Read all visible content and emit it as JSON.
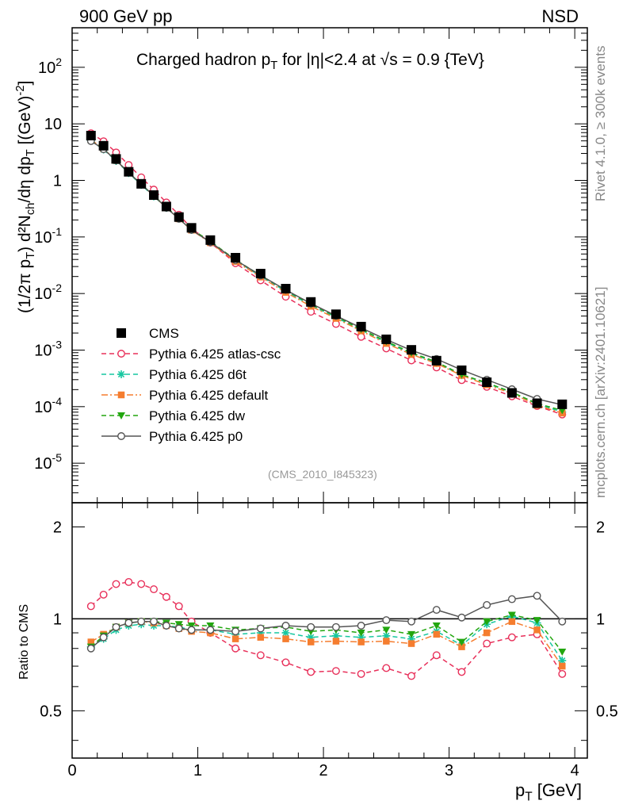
{
  "header": {
    "left": "900 GeV pp",
    "right": "NSD"
  },
  "side_labels": {
    "rivet": "Rivet 4.1.0, ≥ 300k events",
    "mcplots": "mcplots.cern.ch [arXiv:2401.10621]"
  },
  "chart_data": [
    {
      "type": "scatter",
      "title": "Charged hadron p_T for |η|<2.4 at √s = 0.9 {TeV}",
      "ylabel": "(1/2π p_T) d²N_ch/dη dp_T [(GeV)^-2]",
      "xlabel": "p_T [GeV]",
      "yscale": "log",
      "xlim": [
        0,
        4.1
      ],
      "ylim": [
        2e-06,
        500
      ],
      "analysis_tag": "(CMS_2010_I845323)",
      "y_tick_labels": [
        "10^-5",
        "10^-4",
        "10^-3",
        "10^-2",
        "10^-1",
        "1",
        "10",
        "10^2"
      ],
      "x": [
        0.15,
        0.25,
        0.35,
        0.45,
        0.55,
        0.65,
        0.75,
        0.85,
        0.95,
        1.1,
        1.3,
        1.5,
        1.7,
        1.9,
        2.1,
        2.3,
        2.5,
        2.7,
        2.9,
        3.1,
        3.3,
        3.5,
        3.7,
        3.9
      ],
      "data": {
        "name": "CMS",
        "values": [
          6.2,
          4.1,
          2.4,
          1.42,
          0.87,
          0.55,
          0.345,
          0.225,
          0.145,
          0.088,
          0.043,
          0.0225,
          0.0122,
          0.0071,
          0.0043,
          0.0026,
          0.00155,
          0.00101,
          0.00065,
          0.00044,
          0.00027,
          0.000175,
          0.000115,
          0.00011
        ]
      },
      "series": [
        {
          "name": "Pythia 6.425 atlas-csc",
          "color": "#e8305a",
          "marker": "open-circle",
          "dash": "dashed",
          "ratio": [
            1.1,
            1.2,
            1.3,
            1.32,
            1.3,
            1.25,
            1.18,
            1.1,
            0.98,
            0.9,
            0.8,
            0.76,
            0.72,
            0.67,
            0.675,
            0.66,
            0.69,
            0.65,
            0.76,
            0.67,
            0.83,
            0.87,
            0.89,
            0.66
          ]
        },
        {
          "name": "Pythia 6.425 d6t",
          "color": "#17c7a0",
          "marker": "star",
          "dash": "dashed",
          "ratio": [
            0.81,
            0.86,
            0.92,
            0.95,
            0.96,
            0.95,
            0.95,
            0.94,
            0.92,
            0.92,
            0.89,
            0.9,
            0.9,
            0.87,
            0.88,
            0.87,
            0.88,
            0.86,
            0.91,
            0.82,
            0.96,
            1.02,
            0.97,
            0.73
          ]
        },
        {
          "name": "Pythia 6.425 default",
          "color": "#f57d2f",
          "marker": "square",
          "dash": "dashdot",
          "ratio": [
            0.84,
            0.89,
            0.94,
            0.97,
            0.98,
            0.97,
            0.95,
            0.93,
            0.91,
            0.9,
            0.86,
            0.87,
            0.86,
            0.84,
            0.845,
            0.84,
            0.845,
            0.83,
            0.89,
            0.81,
            0.9,
            0.98,
            0.92,
            0.7
          ]
        },
        {
          "name": "Pythia 6.425 dw",
          "color": "#22a60f",
          "marker": "down-triangle",
          "dash": "dashed",
          "ratio": [
            0.81,
            0.88,
            0.94,
            0.97,
            0.98,
            0.98,
            0.97,
            0.96,
            0.95,
            0.95,
            0.92,
            0.93,
            0.94,
            0.91,
            0.92,
            0.9,
            0.92,
            0.89,
            0.95,
            0.84,
            0.98,
            1.03,
            0.99,
            0.78
          ]
        },
        {
          "name": "Pythia 6.425 p0",
          "color": "#555555",
          "marker": "open-circle",
          "dash": "solid",
          "ratio": [
            0.8,
            0.87,
            0.94,
            0.97,
            0.98,
            0.98,
            0.95,
            0.93,
            0.92,
            0.92,
            0.91,
            0.93,
            0.95,
            0.94,
            0.94,
            0.95,
            0.99,
            0.98,
            1.07,
            1.01,
            1.11,
            1.16,
            1.19,
            0.98
          ]
        }
      ]
    },
    {
      "type": "line",
      "ylabel": "Ratio to CMS",
      "xlabel": "p_T [GeV]",
      "yscale": "log",
      "ylim": [
        0.35,
        2.4
      ],
      "y_tick_labels": [
        "0.5",
        "1",
        "2"
      ],
      "x_tick_labels": [
        "0",
        "1",
        "2",
        "3",
        "4"
      ],
      "reference": 1
    }
  ]
}
